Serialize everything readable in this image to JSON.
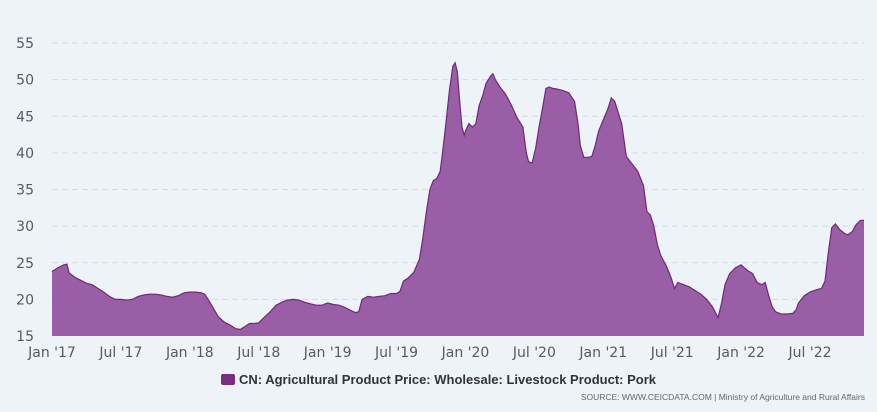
{
  "chart_data": {
    "type": "area",
    "title": "",
    "xlabel": "",
    "ylabel": "",
    "ylim": [
      15,
      55
    ],
    "y_ticks": [
      15,
      20,
      25,
      30,
      35,
      40,
      45,
      50,
      55
    ],
    "x_ticks": [
      {
        "label": "Jan '17",
        "t": 0
      },
      {
        "label": "Jul '17",
        "t": 6
      },
      {
        "label": "Jan '18",
        "t": 12
      },
      {
        "label": "Jul '18",
        "t": 18
      },
      {
        "label": "Jan '19",
        "t": 24
      },
      {
        "label": "Jul '19",
        "t": 30
      },
      {
        "label": "Jan '20",
        "t": 36
      },
      {
        "label": "Jul '20",
        "t": 42
      },
      {
        "label": "Jan '21",
        "t": 48
      },
      {
        "label": "Jul '21",
        "t": 54
      },
      {
        "label": "Jan '22",
        "t": 60
      },
      {
        "label": "Jul '22",
        "t": 66
      }
    ],
    "grid": true,
    "legend_position": "bottom",
    "color": "#7b2d84",
    "series": [
      {
        "name": "CN: Agricultural Product Price: Wholesale: Livestock Product: Pork",
        "points": [
          [
            0.0,
            23.8
          ],
          [
            0.5,
            24.3
          ],
          [
            1.0,
            24.7
          ],
          [
            1.3,
            24.8
          ],
          [
            1.5,
            23.6
          ],
          [
            2.0,
            23.0
          ],
          [
            2.5,
            22.6
          ],
          [
            3.0,
            22.2
          ],
          [
            3.5,
            22.0
          ],
          [
            4.0,
            21.5
          ],
          [
            4.5,
            21.0
          ],
          [
            5.0,
            20.4
          ],
          [
            5.5,
            20.0
          ],
          [
            6.0,
            20.0
          ],
          [
            6.5,
            19.9
          ],
          [
            7.0,
            20.0
          ],
          [
            7.5,
            20.4
          ],
          [
            8.0,
            20.6
          ],
          [
            8.5,
            20.7
          ],
          [
            9.0,
            20.7
          ],
          [
            9.5,
            20.6
          ],
          [
            10.0,
            20.4
          ],
          [
            10.5,
            20.3
          ],
          [
            11.0,
            20.5
          ],
          [
            11.5,
            20.9
          ],
          [
            12.0,
            21.0
          ],
          [
            12.5,
            21.0
          ],
          [
            13.0,
            20.9
          ],
          [
            13.3,
            20.7
          ],
          [
            13.6,
            20.0
          ],
          [
            14.0,
            18.9
          ],
          [
            14.5,
            17.6
          ],
          [
            15.0,
            16.9
          ],
          [
            15.5,
            16.5
          ],
          [
            16.0,
            16.0
          ],
          [
            16.4,
            15.9
          ],
          [
            16.8,
            16.3
          ],
          [
            17.2,
            16.7
          ],
          [
            17.6,
            16.7
          ],
          [
            18.0,
            16.8
          ],
          [
            18.5,
            17.6
          ],
          [
            19.0,
            18.3
          ],
          [
            19.5,
            19.2
          ],
          [
            20.0,
            19.6
          ],
          [
            20.5,
            19.9
          ],
          [
            21.0,
            20.0
          ],
          [
            21.5,
            19.9
          ],
          [
            22.0,
            19.6
          ],
          [
            22.5,
            19.4
          ],
          [
            23.0,
            19.2
          ],
          [
            23.5,
            19.2
          ],
          [
            24.0,
            19.5
          ],
          [
            24.5,
            19.3
          ],
          [
            25.0,
            19.2
          ],
          [
            25.5,
            18.9
          ],
          [
            26.0,
            18.5
          ],
          [
            26.4,
            18.2
          ],
          [
            26.7,
            18.3
          ],
          [
            27.0,
            20.0
          ],
          [
            27.5,
            20.4
          ],
          [
            28.0,
            20.3
          ],
          [
            28.5,
            20.4
          ],
          [
            29.0,
            20.5
          ],
          [
            29.5,
            20.8
          ],
          [
            30.0,
            20.8
          ],
          [
            30.3,
            21.1
          ],
          [
            30.6,
            22.5
          ],
          [
            31.0,
            22.9
          ],
          [
            31.5,
            23.7
          ],
          [
            32.0,
            25.5
          ],
          [
            32.3,
            28.5
          ],
          [
            32.6,
            32.0
          ],
          [
            32.9,
            35.0
          ],
          [
            33.2,
            36.2
          ],
          [
            33.5,
            36.5
          ],
          [
            33.8,
            37.5
          ],
          [
            34.0,
            40.0
          ],
          [
            34.3,
            44.0
          ],
          [
            34.6,
            48.5
          ],
          [
            34.9,
            51.8
          ],
          [
            35.1,
            52.3
          ],
          [
            35.3,
            51.0
          ],
          [
            35.5,
            47.0
          ],
          [
            35.7,
            43.5
          ],
          [
            35.9,
            42.4
          ],
          [
            36.0,
            43.0
          ],
          [
            36.3,
            44.0
          ],
          [
            36.6,
            43.5
          ],
          [
            36.9,
            44.0
          ],
          [
            37.2,
            46.5
          ],
          [
            37.5,
            47.8
          ],
          [
            37.8,
            49.5
          ],
          [
            38.2,
            50.5
          ],
          [
            38.4,
            50.8
          ],
          [
            38.6,
            50.0
          ],
          [
            39.0,
            49.0
          ],
          [
            39.5,
            48.0
          ],
          [
            40.0,
            46.5
          ],
          [
            40.5,
            44.8
          ],
          [
            41.0,
            43.5
          ],
          [
            41.3,
            40.0
          ],
          [
            41.5,
            38.8
          ],
          [
            41.8,
            38.6
          ],
          [
            42.1,
            40.5
          ],
          [
            42.4,
            43.5
          ],
          [
            42.7,
            46.0
          ],
          [
            43.0,
            48.8
          ],
          [
            43.3,
            49.0
          ],
          [
            43.6,
            48.8
          ],
          [
            44.0,
            48.7
          ],
          [
            44.5,
            48.5
          ],
          [
            45.0,
            48.2
          ],
          [
            45.5,
            47.0
          ],
          [
            45.8,
            44.0
          ],
          [
            46.0,
            41.0
          ],
          [
            46.3,
            39.4
          ],
          [
            46.7,
            39.4
          ],
          [
            47.0,
            39.5
          ],
          [
            47.3,
            41.0
          ],
          [
            47.6,
            43.0
          ],
          [
            48.0,
            44.5
          ],
          [
            48.4,
            46.0
          ],
          [
            48.7,
            47.5
          ],
          [
            49.0,
            47.0
          ],
          [
            49.3,
            45.5
          ],
          [
            49.6,
            44.0
          ],
          [
            50.0,
            39.5
          ],
          [
            50.5,
            38.5
          ],
          [
            51.0,
            37.5
          ],
          [
            51.5,
            35.5
          ],
          [
            51.8,
            32.0
          ],
          [
            52.1,
            31.5
          ],
          [
            52.4,
            30.0
          ],
          [
            52.7,
            27.5
          ],
          [
            53.0,
            26.0
          ],
          [
            53.5,
            24.5
          ],
          [
            53.9,
            23.0
          ],
          [
            54.2,
            21.5
          ],
          [
            54.5,
            22.3
          ],
          [
            55.0,
            22.0
          ],
          [
            55.5,
            21.7
          ],
          [
            56.0,
            21.2
          ],
          [
            56.5,
            20.7
          ],
          [
            57.0,
            20.0
          ],
          [
            57.5,
            19.0
          ],
          [
            58.0,
            17.5
          ],
          [
            58.3,
            19.5
          ],
          [
            58.6,
            22.0
          ],
          [
            59.0,
            23.5
          ],
          [
            59.5,
            24.3
          ],
          [
            60.0,
            24.7
          ],
          [
            60.5,
            24.0
          ],
          [
            61.0,
            23.5
          ],
          [
            61.4,
            22.3
          ],
          [
            61.8,
            22.0
          ],
          [
            62.1,
            22.3
          ],
          [
            62.4,
            20.5
          ],
          [
            62.7,
            19.0
          ],
          [
            63.0,
            18.3
          ],
          [
            63.5,
            18.0
          ],
          [
            64.0,
            18.0
          ],
          [
            64.5,
            18.1
          ],
          [
            64.8,
            18.6
          ],
          [
            65.0,
            19.5
          ],
          [
            65.5,
            20.5
          ],
          [
            66.0,
            21.0
          ],
          [
            66.5,
            21.3
          ],
          [
            67.0,
            21.5
          ],
          [
            67.3,
            22.5
          ],
          [
            67.6,
            26.5
          ],
          [
            67.9,
            29.8
          ],
          [
            68.2,
            30.3
          ],
          [
            68.6,
            29.5
          ],
          [
            69.0,
            29.0
          ],
          [
            69.3,
            28.8
          ],
          [
            69.7,
            29.3
          ],
          [
            70.0,
            30.2
          ],
          [
            70.4,
            30.8
          ],
          [
            70.7,
            30.8
          ]
        ]
      }
    ]
  },
  "legend": {
    "label": "CN: Agricultural Product Price: Wholesale: Livestock Product: Pork"
  },
  "source": {
    "text": "SOURCE: WWW.CEICDATA.COM | Ministry of Agriculture and Rural Affairs"
  }
}
